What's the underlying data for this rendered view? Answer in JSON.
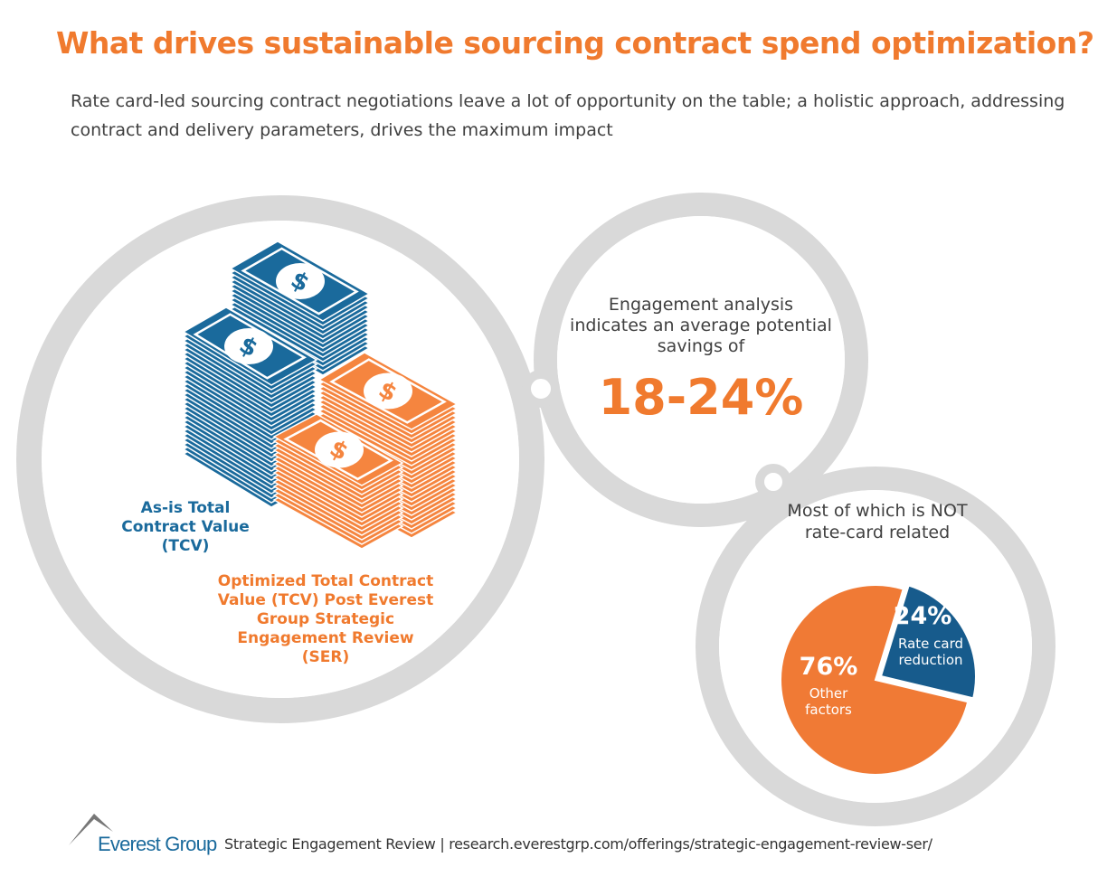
{
  "title": "What drives sustainable sourcing contract spend optimization?",
  "subtitle": "Rate card-led sourcing contract negotiations leave a lot of opportunity on the table; a holistic approach, addressing contract and delivery parameters, drives the maximum impact",
  "stacks": {
    "as_is_label": "As-is Total Contract Value (TCV)",
    "optimized_label": "Optimized Total Contract Value (TCV) Post Everest Group Strategic Engagement Review (SER)",
    "icon": "dollar-bill-stack-icon"
  },
  "engagement": {
    "text": "Engagement analysis indicates an average potential savings of",
    "savings": "18-24%"
  },
  "breakdown": {
    "text": "Most of which is NOT rate-card related"
  },
  "chart_data": {
    "type": "pie",
    "slices": [
      {
        "label": "Rate card reduction",
        "value": 24,
        "display": "24%",
        "color": "#175b8c"
      },
      {
        "label": "Other factors",
        "value": 76,
        "display": "76%",
        "color": "#f07a35"
      }
    ]
  },
  "colors": {
    "blue": "#1a6a9c",
    "orange": "#f5853f",
    "title_orange": "#f07a2e",
    "ring_grey": "#d9d9d9"
  },
  "footer": {
    "logo": "Everest Group",
    "text": "Strategic Engagement Review | research.everestgrp.com/offerings/strategic-engagement-review-ser/"
  }
}
